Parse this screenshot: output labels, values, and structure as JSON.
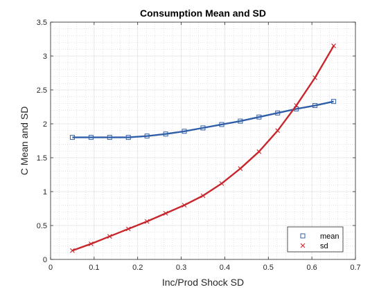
{
  "chart_data": {
    "type": "line",
    "title": "Consumption Mean and SD",
    "xlabel": "Inc/Prod Shock SD",
    "ylabel": "C Mean and SD",
    "xlim": [
      0,
      0.7
    ],
    "ylim": [
      0,
      3.5
    ],
    "xticks": [
      "0",
      "0.1",
      "0.2",
      "0.3",
      "0.4",
      "0.5",
      "0.6",
      "0.7"
    ],
    "yticks": [
      "0",
      "0.5",
      "1",
      "1.5",
      "2",
      "2.5",
      "3",
      "3.5"
    ],
    "grid": true,
    "minor_grid": true,
    "legend_position": "bottom-right",
    "x": [
      0.05,
      0.0929,
      0.1357,
      0.1786,
      0.2214,
      0.2643,
      0.3071,
      0.35,
      0.3929,
      0.4357,
      0.4786,
      0.5214,
      0.5643,
      0.6071,
      0.65
    ],
    "series": [
      {
        "name": "mean",
        "color": "#2f5ea8",
        "marker": "square",
        "values": [
          1.8,
          1.8,
          1.8,
          1.8,
          1.82,
          1.85,
          1.89,
          1.94,
          1.99,
          2.04,
          2.1,
          2.16,
          2.22,
          2.27,
          2.33
        ]
      },
      {
        "name": "sd",
        "color": "#c8262b",
        "marker": "x",
        "values": [
          0.13,
          0.23,
          0.34,
          0.45,
          0.56,
          0.68,
          0.8,
          0.94,
          1.12,
          1.34,
          1.59,
          1.9,
          2.27,
          2.68,
          3.15
        ]
      }
    ]
  }
}
